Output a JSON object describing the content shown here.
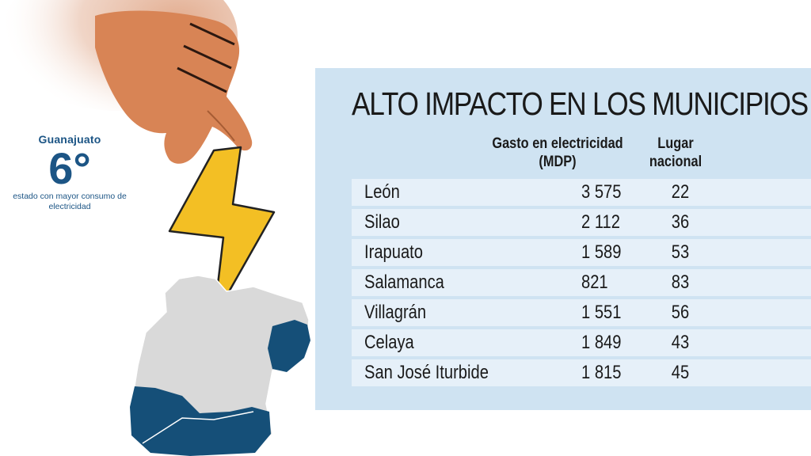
{
  "stat": {
    "state": "Guanajuato",
    "rank": "6°",
    "caption": "estado con mayor consumo de electricidad"
  },
  "table": {
    "title": "ALTO IMPACTO EN LOS MUNICIPIOS",
    "col_spend": "Gasto en electricidad (MDP)",
    "col_rank": "Lugar nacional",
    "rows": [
      {
        "municipio": "León",
        "gasto": "3 575",
        "lugar": "22"
      },
      {
        "municipio": "Silao",
        "gasto": "2 112",
        "lugar": "36"
      },
      {
        "municipio": "Irapuato",
        "gasto": "1 589",
        "lugar": "53"
      },
      {
        "municipio": "Salamanca",
        "gasto": "821",
        "lugar": "83"
      },
      {
        "municipio": "Villagrán",
        "gasto": "1 551",
        "lugar": "56"
      },
      {
        "municipio": "Celaya",
        "gasto": "1 849",
        "lugar": "43"
      },
      {
        "municipio": "San José Iturbide",
        "gasto": "1 815",
        "lugar": "45"
      }
    ]
  },
  "colors": {
    "panel": "#cfe3f2",
    "row_light": "#e6f0f9",
    "brand_blue": "#1c5585",
    "map_gray": "#d9d9d9",
    "map_blue": "#154f78",
    "bolt": "#f3bf24",
    "hand": "#d88455"
  }
}
